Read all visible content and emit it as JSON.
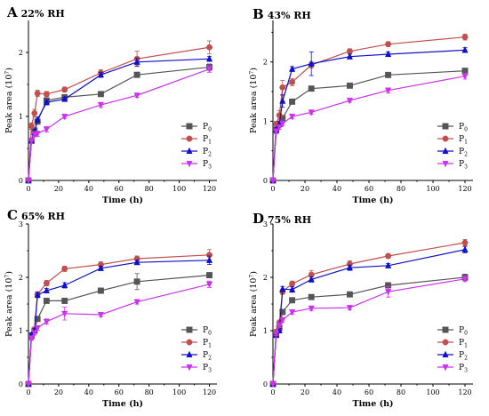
{
  "series_styles": [
    {
      "key": "P0",
      "name": "P",
      "sub": "0",
      "color": "#555555",
      "marker": "square"
    },
    {
      "key": "P1",
      "name": "P",
      "sub": "1",
      "color": "#c0504d",
      "marker": "circle"
    },
    {
      "key": "P2",
      "name": "P",
      "sub": "2",
      "color": "#1010c8",
      "marker": "triangle-up"
    },
    {
      "key": "P3",
      "name": "P",
      "sub": "3",
      "color": "#cc33ee",
      "marker": "triangle-down"
    }
  ],
  "chart_data": [
    {
      "type": "line",
      "panel": "A",
      "condition": "22% RH",
      "xlabel": "Time (h)",
      "ylabel": "Peak area (10",
      "ylabel_exp": "7",
      "ylabel_close": ")",
      "xlim": [
        0,
        125
      ],
      "ylim": [
        0,
        2.5
      ],
      "xticks": [
        "0",
        "20",
        "40",
        "60",
        "80",
        "100",
        "120"
      ],
      "xtick_values": [
        0,
        20,
        40,
        60,
        80,
        100,
        120
      ],
      "yticks": [
        "0",
        "1",
        "2"
      ],
      "ytick_values": [
        0,
        1,
        2
      ],
      "x": [
        0,
        2,
        4,
        6,
        12,
        24,
        48,
        72,
        120
      ],
      "series": [
        {
          "name": "P0",
          "values": [
            0,
            0.62,
            0.78,
            0.92,
            1.25,
            1.3,
            1.35,
            1.65,
            1.77
          ],
          "err": [
            0,
            0.04,
            0.04,
            0.04,
            0.03,
            0.03,
            0.03,
            0.04,
            0.05
          ]
        },
        {
          "name": "P1",
          "values": [
            0,
            0.85,
            1.05,
            1.36,
            1.35,
            1.42,
            1.68,
            1.9,
            2.08
          ],
          "err": [
            0,
            0.05,
            0.06,
            0.05,
            0.04,
            0.04,
            0.05,
            0.12,
            0.1
          ]
        },
        {
          "name": "P2",
          "values": [
            0,
            0.62,
            0.75,
            0.95,
            1.22,
            1.27,
            1.65,
            1.85,
            1.9
          ],
          "err": [
            0,
            0.04,
            0.05,
            0.04,
            0.04,
            0.03,
            0.04,
            0.06,
            0.04
          ]
        },
        {
          "name": "P3",
          "values": [
            0,
            0.62,
            0.72,
            0.73,
            0.8,
            1.0,
            1.18,
            1.33,
            1.74
          ],
          "err": [
            0,
            0.04,
            0.04,
            0.04,
            0.04,
            0.03,
            0.04,
            0.03,
            0.05
          ]
        }
      ]
    },
    {
      "type": "line",
      "panel": "B",
      "condition": "43% RH",
      "xlabel": "Time (h)",
      "ylabel": "Peak area (10",
      "ylabel_exp": "7",
      "ylabel_close": ")",
      "xlim": [
        0,
        125
      ],
      "ylim": [
        0,
        2.7
      ],
      "xticks": [
        "0",
        "20",
        "40",
        "60",
        "80",
        "100",
        "120"
      ],
      "xtick_values": [
        0,
        20,
        40,
        60,
        80,
        100,
        120
      ],
      "yticks": [
        "0",
        "1",
        "2"
      ],
      "ytick_values": [
        0,
        1,
        2
      ],
      "x": [
        0,
        2,
        4,
        6,
        12,
        24,
        48,
        72,
        120
      ],
      "series": [
        {
          "name": "P0",
          "values": [
            0,
            0.85,
            0.95,
            1.05,
            1.33,
            1.55,
            1.6,
            1.78,
            1.85
          ],
          "err": [
            0,
            0.04,
            0.04,
            0.04,
            0.04,
            0.03,
            0.03,
            0.03,
            0.03
          ]
        },
        {
          "name": "P1",
          "values": [
            0,
            0.95,
            1.1,
            1.57,
            1.66,
            1.95,
            2.18,
            2.3,
            2.42
          ],
          "err": [
            0,
            0.05,
            0.08,
            0.12,
            0.06,
            0.05,
            0.04,
            0.04,
            0.05
          ]
        },
        {
          "name": "P2",
          "values": [
            0,
            0.85,
            0.95,
            1.34,
            1.88,
            1.97,
            2.09,
            2.13,
            2.2
          ],
          "err": [
            0,
            0.04,
            0.05,
            0.1,
            0.04,
            0.2,
            0.04,
            0.04,
            0.04
          ]
        },
        {
          "name": "P3",
          "values": [
            0,
            0.83,
            0.9,
            0.96,
            1.08,
            1.15,
            1.35,
            1.52,
            1.76
          ],
          "err": [
            0,
            0.04,
            0.04,
            0.04,
            0.04,
            0.03,
            0.03,
            0.04,
            0.05
          ]
        }
      ]
    },
    {
      "type": "line",
      "panel": "C",
      "condition": "65% RH",
      "xlabel": "Time (h)",
      "ylabel": "Peak area (10",
      "ylabel_exp": "7",
      "ylabel_close": ")",
      "xlim": [
        0,
        125
      ],
      "ylim": [
        0,
        3.0
      ],
      "xticks": [
        "0",
        "20",
        "40",
        "60",
        "80",
        "100",
        "120"
      ],
      "xtick_values": [
        0,
        20,
        40,
        60,
        80,
        100,
        120
      ],
      "yticks": [
        "0",
        "1",
        "2",
        "3"
      ],
      "ytick_values": [
        0,
        1,
        2,
        3
      ],
      "x": [
        0,
        2,
        4,
        6,
        12,
        24,
        48,
        72,
        120
      ],
      "series": [
        {
          "name": "P0",
          "values": [
            0,
            0.9,
            1.0,
            1.22,
            1.56,
            1.56,
            1.75,
            1.92,
            2.04
          ],
          "err": [
            0,
            0.04,
            0.04,
            0.04,
            0.04,
            0.05,
            0.04,
            0.15,
            0.04
          ]
        },
        {
          "name": "P1",
          "values": [
            0,
            0.88,
            1.02,
            1.68,
            1.89,
            2.16,
            2.24,
            2.35,
            2.42
          ],
          "err": [
            0,
            0.05,
            0.05,
            0.05,
            0.05,
            0.05,
            0.05,
            0.05,
            0.1
          ]
        },
        {
          "name": "P2",
          "values": [
            0,
            0.92,
            1.0,
            1.67,
            1.75,
            1.85,
            2.17,
            2.28,
            2.32
          ],
          "err": [
            0,
            0.04,
            0.04,
            0.05,
            0.04,
            0.05,
            0.04,
            0.04,
            0.08
          ]
        },
        {
          "name": "P3",
          "values": [
            0,
            0.86,
            0.96,
            1.05,
            1.17,
            1.32,
            1.3,
            1.54,
            1.87
          ],
          "err": [
            0,
            0.04,
            0.04,
            0.04,
            0.05,
            0.12,
            0.04,
            0.04,
            0.06
          ]
        }
      ]
    },
    {
      "type": "line",
      "panel": "D",
      "condition": "75% RH",
      "xlabel": "Time (h)",
      "ylabel": "Peak area (10",
      "ylabel_exp": "7",
      "ylabel_close": ")",
      "xlim": [
        0,
        125
      ],
      "ylim": [
        0,
        3.0
      ],
      "xticks": [
        "0",
        "20",
        "40",
        "60",
        "80",
        "100",
        "120"
      ],
      "xtick_values": [
        0,
        20,
        40,
        60,
        80,
        100,
        120
      ],
      "yticks": [
        "0",
        "1",
        "2",
        "3"
      ],
      "ytick_values": [
        0,
        1,
        2,
        3
      ],
      "x": [
        0,
        2,
        4,
        6,
        12,
        24,
        48,
        72,
        120
      ],
      "series": [
        {
          "name": "P0",
          "values": [
            0,
            0.92,
            1.05,
            1.35,
            1.57,
            1.63,
            1.68,
            1.85,
            2.0
          ],
          "err": [
            0,
            0.04,
            0.04,
            0.04,
            0.04,
            0.04,
            0.04,
            0.04,
            0.06
          ]
        },
        {
          "name": "P1",
          "values": [
            0,
            0.98,
            1.15,
            1.73,
            1.88,
            2.05,
            2.25,
            2.4,
            2.65
          ],
          "err": [
            0,
            0.04,
            0.05,
            0.05,
            0.05,
            0.08,
            0.06,
            0.04,
            0.06
          ]
        },
        {
          "name": "P2",
          "values": [
            0,
            0.92,
            1.0,
            1.78,
            1.77,
            1.96,
            2.18,
            2.22,
            2.52
          ],
          "err": [
            0,
            0.04,
            0.04,
            0.05,
            0.05,
            0.05,
            0.05,
            0.04,
            0.06
          ]
        },
        {
          "name": "P3",
          "values": [
            0,
            0.95,
            1.1,
            1.2,
            1.35,
            1.42,
            1.43,
            1.73,
            1.97
          ],
          "err": [
            0,
            0.04,
            0.04,
            0.04,
            0.04,
            0.04,
            0.04,
            0.1,
            0.05
          ]
        }
      ]
    }
  ]
}
